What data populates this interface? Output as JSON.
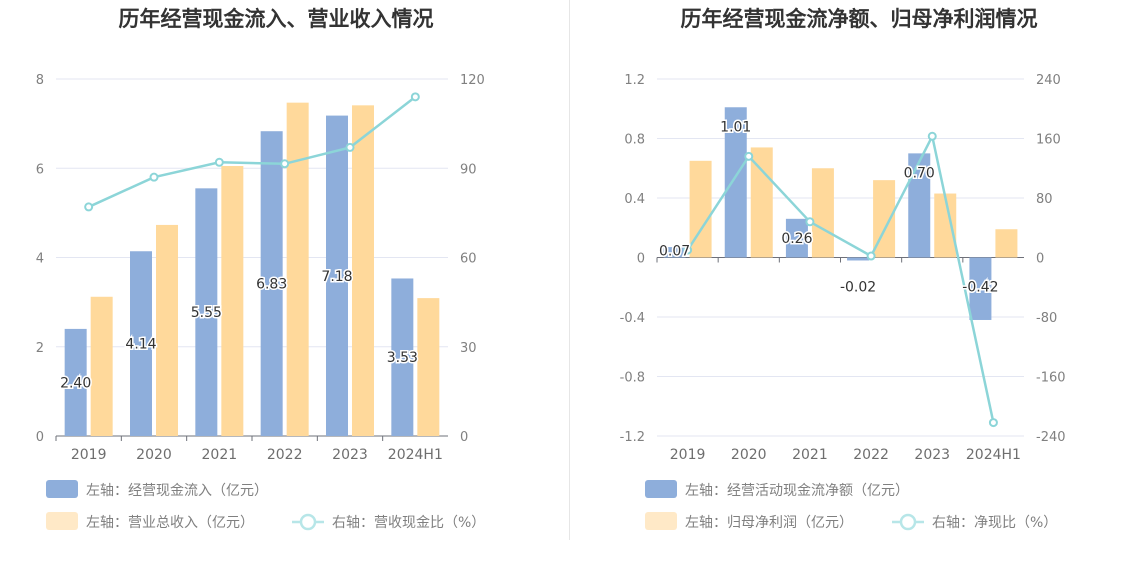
{
  "colors": {
    "blue": "#8eaedb",
    "orange": "#ffd99b",
    "teal": "#8cd5d8",
    "grid": "#e3e6f2",
    "axis": "#6e7079"
  },
  "chart_data": [
    {
      "type": "bar",
      "title": "历年经营现金流入、营业收入情况",
      "categories": [
        "2019",
        "2020",
        "2021",
        "2022",
        "2023",
        "2024H1"
      ],
      "y_left": {
        "min": 0,
        "max": 8,
        "ticks": [
          "0",
          "2",
          "4",
          "6",
          "8"
        ]
      },
      "y_right": {
        "min": 0,
        "max": 120,
        "ticks": [
          "0",
          "30",
          "60",
          "90",
          "120"
        ]
      },
      "series": [
        {
          "name": "左轴：经营现金流入（亿元）",
          "type": "bar",
          "axis": "left",
          "values": [
            2.4,
            4.14,
            5.55,
            6.83,
            7.18,
            3.53
          ],
          "labels": [
            "2.40",
            "4.14",
            "5.55",
            "6.83",
            "7.18",
            "3.53"
          ]
        },
        {
          "name": "左轴：营业总收入（亿元）",
          "type": "bar",
          "axis": "left",
          "values": [
            3.12,
            4.73,
            6.05,
            7.47,
            7.41,
            3.09
          ]
        },
        {
          "name": "右轴：营收现金比（%）",
          "type": "line",
          "axis": "right",
          "values": [
            77,
            87,
            92,
            91.5,
            97,
            114
          ]
        }
      ],
      "legend": "bottom-left"
    },
    {
      "type": "bar",
      "title": "历年经营现金流净额、归母净利润情况",
      "categories": [
        "2019",
        "2020",
        "2021",
        "2022",
        "2023",
        "2024H1"
      ],
      "y_left": {
        "min": -1.2,
        "max": 1.2,
        "ticks": [
          "-1.2",
          "-0.8",
          "-0.4",
          "0",
          "0.4",
          "0.8",
          "1.2"
        ]
      },
      "y_right": {
        "min": -240,
        "max": 240,
        "ticks": [
          "-240",
          "-160",
          "-80",
          "0",
          "80",
          "160",
          "240"
        ]
      },
      "series": [
        {
          "name": "左轴：经营活动现金流净额（亿元）",
          "type": "bar",
          "axis": "left",
          "values": [
            0.07,
            1.01,
            0.26,
            -0.02,
            0.7,
            -0.42
          ],
          "labels": [
            "0.07",
            "1.01",
            "0.26",
            "-0.02",
            "0.70",
            "-0.42"
          ]
        },
        {
          "name": "左轴：归母净利润（亿元）",
          "type": "bar",
          "axis": "left",
          "values": [
            0.65,
            0.74,
            0.6,
            0.52,
            0.43,
            0.19
          ]
        },
        {
          "name": "右轴：净现比（%）",
          "type": "line",
          "axis": "right",
          "values": [
            10,
            136,
            48,
            2,
            163,
            -222
          ]
        }
      ],
      "legend": "bottom-left"
    }
  ]
}
